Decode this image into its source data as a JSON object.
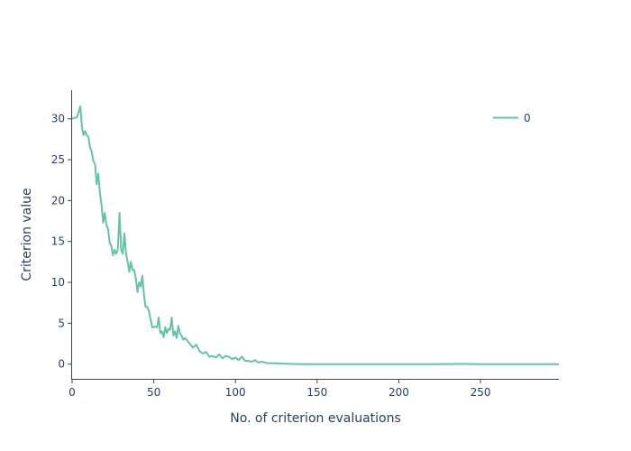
{
  "chart_data": {
    "type": "line",
    "title": "",
    "xlabel": "No. of criterion evaluations",
    "ylabel": "Criterion value",
    "xlim": [
      0,
      298
    ],
    "ylim": [
      -1.8,
      33.5
    ],
    "x_ticks": [
      0,
      50,
      100,
      150,
      200,
      250
    ],
    "y_ticks": [
      0,
      5,
      10,
      15,
      20,
      25,
      30
    ],
    "grid": false,
    "legend_position": "top-right",
    "series": [
      {
        "name": "0",
        "color": "#66c2a5",
        "x": [
          0,
          3,
          5,
          6,
          7,
          8,
          9,
          10,
          11,
          12,
          13,
          14,
          15,
          16,
          17,
          18,
          19,
          20,
          21,
          22,
          23,
          24,
          25,
          26,
          27,
          28,
          29,
          30,
          31,
          32,
          33,
          34,
          35,
          36,
          37,
          38,
          39,
          40,
          41,
          42,
          43,
          44,
          45,
          46,
          47,
          48,
          49,
          50,
          51,
          52,
          53,
          54,
          55,
          56,
          57,
          58,
          59,
          60,
          61,
          62,
          63,
          64,
          65,
          66,
          67,
          68,
          69,
          70,
          72,
          74,
          76,
          78,
          80,
          82,
          84,
          86,
          88,
          90,
          92,
          94,
          96,
          98,
          100,
          102,
          104,
          106,
          108,
          110,
          112,
          114,
          116,
          118,
          120,
          125,
          130,
          135,
          140,
          145,
          150,
          160,
          180,
          200,
          220,
          240,
          250,
          260,
          280,
          298
        ],
        "y": [
          30,
          30.2,
          31.5,
          29,
          28,
          28.5,
          28,
          27.8,
          26.5,
          26,
          24.8,
          24.5,
          22,
          23.3,
          21,
          19.5,
          17.3,
          18.5,
          17,
          16.5,
          14.8,
          14.5,
          13.3,
          14,
          13.5,
          14,
          18.5,
          14,
          13.5,
          16,
          13.5,
          12.5,
          11.3,
          12.5,
          11.5,
          11.5,
          10.5,
          8.8,
          10,
          9.5,
          10.8,
          8.5,
          7,
          7,
          6.5,
          5.5,
          4.5,
          4.5,
          4.6,
          4.5,
          5.7,
          3.8,
          4,
          3.3,
          4.5,
          3.8,
          4.3,
          4.2,
          5.7,
          3.5,
          4,
          3.2,
          4.7,
          3.8,
          3.5,
          3,
          3.2,
          3,
          2.5,
          2,
          2.4,
          1.6,
          1.3,
          1.5,
          0.9,
          1,
          0.8,
          1.2,
          0.7,
          1,
          0.9,
          0.6,
          0.8,
          0.5,
          0.9,
          0.4,
          0.4,
          0.3,
          0.5,
          0.2,
          0.3,
          0.2,
          0.1,
          0.1,
          0.05,
          0.02,
          0.01,
          0,
          0,
          0,
          0,
          0,
          0,
          0.02,
          0,
          0,
          0,
          0
        ]
      }
    ]
  }
}
